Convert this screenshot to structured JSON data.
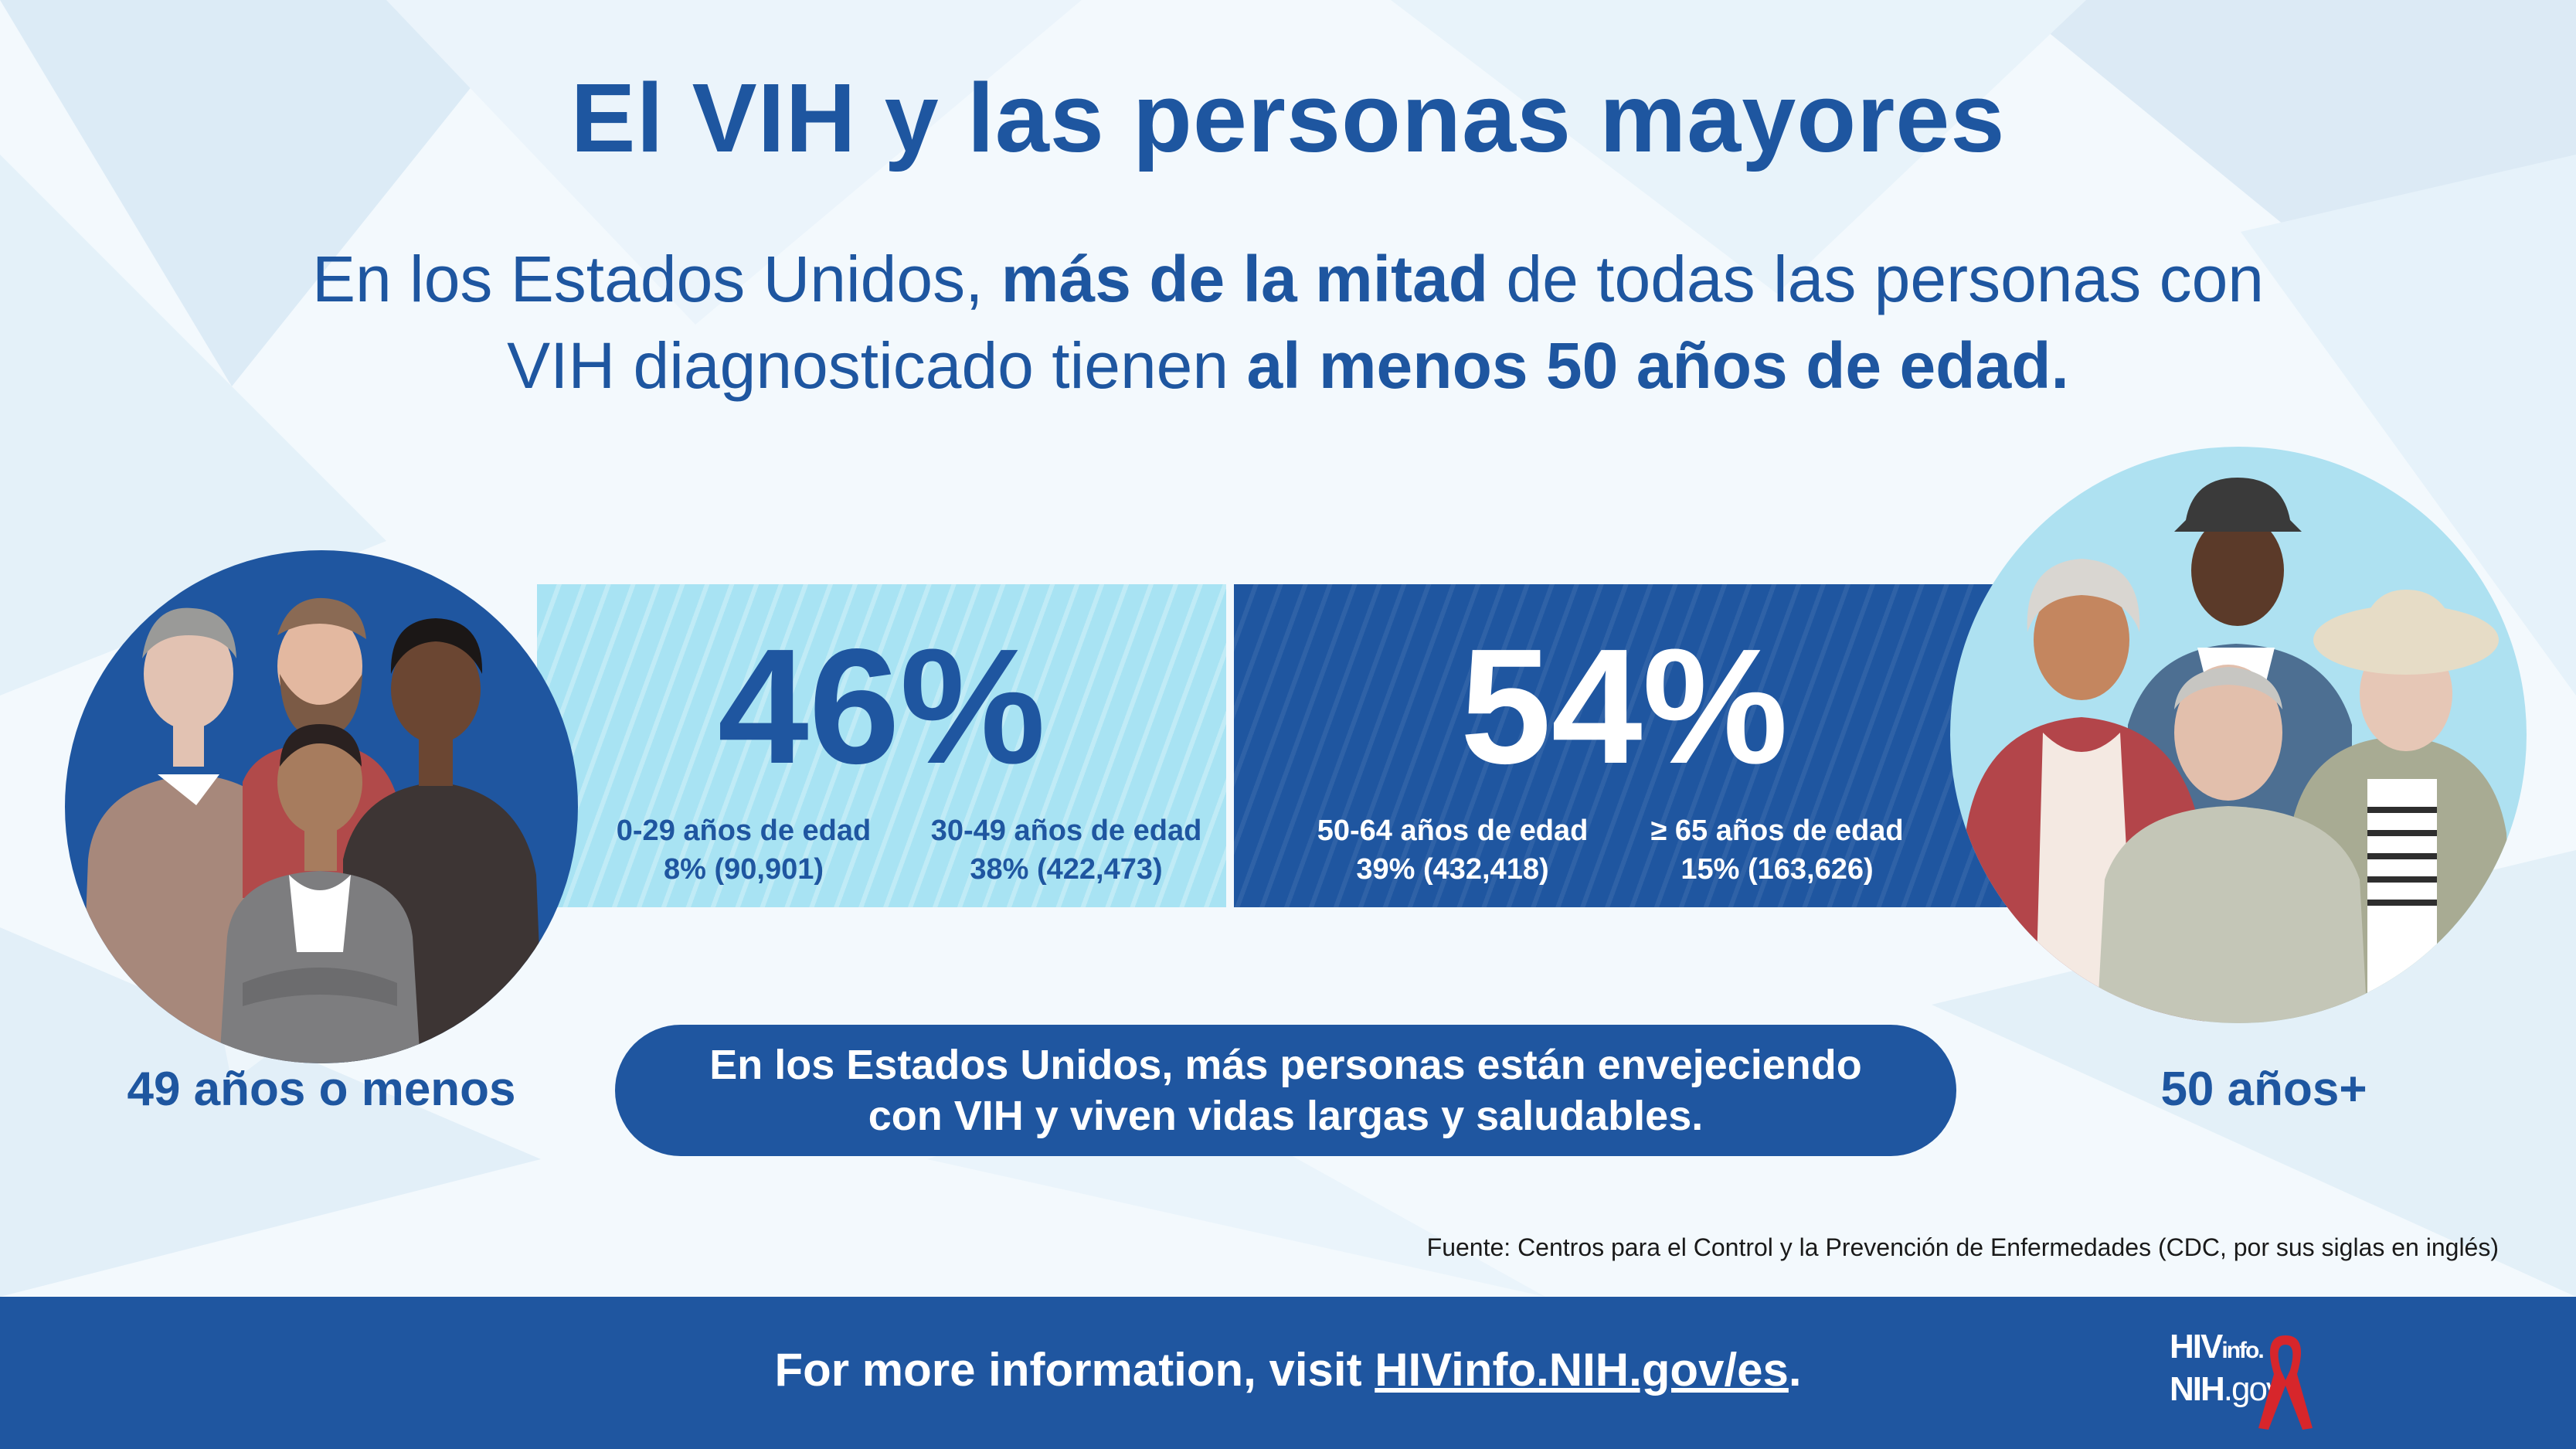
{
  "title": "El VIH y las personas mayores",
  "subtitle": {
    "line1_part1": "En los Estados Unidos, ",
    "line1_bold": "más de la mitad",
    "line1_part2": " de todas las personas con",
    "line2_part1": "VIH diagnosticado tienen ",
    "line2_bold": "al menos 50 años de edad."
  },
  "under_50": {
    "percent_label": "46%",
    "percent_value": 46,
    "side_label": "49 años o menos",
    "groups": [
      {
        "label": "0-29 años de edad",
        "stat": "8% (90,901)",
        "percent": 8,
        "count": 90901
      },
      {
        "label": "30-49 años de edad",
        "stat": "38% (422,473)",
        "percent": 38,
        "count": 422473
      }
    ]
  },
  "over_50": {
    "percent_label": "54%",
    "percent_value": 54,
    "side_label": "50 años+",
    "groups": [
      {
        "label": "50-64 años de edad",
        "stat": "39% (432,418)",
        "percent": 39,
        "count": 432418
      },
      {
        "label": "≥ 65 años de edad",
        "stat": "15% (163,626)",
        "percent": 15,
        "count": 163626
      }
    ]
  },
  "pill": {
    "line1": "En los Estados Unidos, más personas están envejeciendo",
    "line2": "con VIH y viven vidas largas y saludables."
  },
  "source": "Fuente: Centros para el Control y la Prevención de Enfermedades (CDC, por sus siglas en inglés)",
  "footer": {
    "text_prefix": "For more information, visit ",
    "link": "HIVinfo.NIH.gov/es",
    "text_suffix": "."
  },
  "logo": {
    "line1_a": "HIV",
    "line1_b": "info.",
    "line2_a": "NIH",
    "line2_b": ".gov",
    "ribbon_color": "#d7262b"
  },
  "colors": {
    "brand_blue": "#1f56a0",
    "light_blue": "#a8e3f3",
    "ribbon_red": "#d7262b"
  },
  "icons": [
    "people-under-50-illustration",
    "people-over-50-illustration",
    "red-ribbon-icon"
  ]
}
